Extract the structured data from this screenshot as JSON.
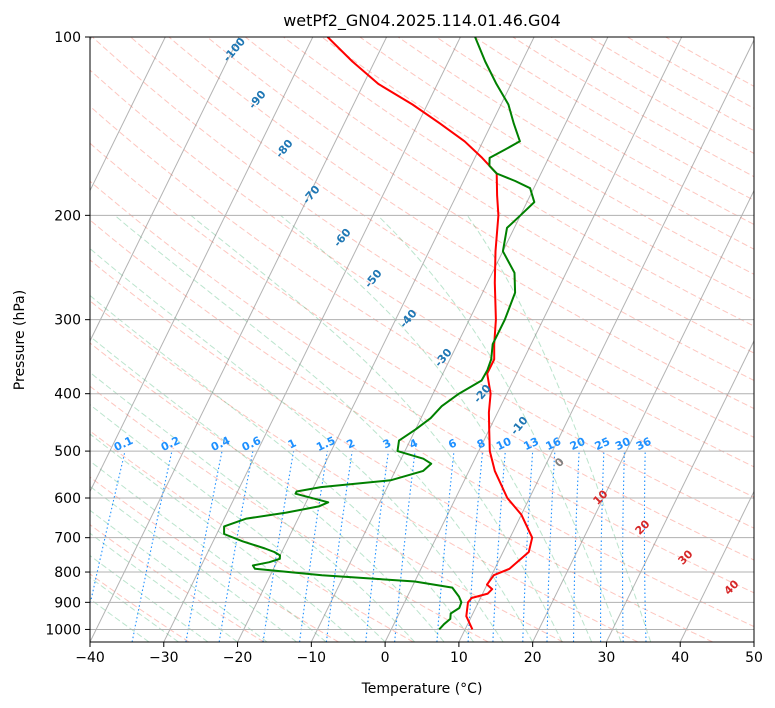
{
  "chart_data": {
    "type": "line",
    "diagram": "skew-T log-p",
    "title": "wetPf2_GN04.2025.114.01.46.G04",
    "xlabel": "Temperature (°C)",
    "ylabel": "Pressure (hPa)",
    "xlim": [
      -40,
      50
    ],
    "ylim_hpa": [
      1050,
      100
    ],
    "y_scale": "log",
    "x_ticks": [
      "−40",
      "−30",
      "−20",
      "−10",
      "0",
      "10",
      "20",
      "30",
      "40",
      "50"
    ],
    "y_ticks": [
      "100",
      "200",
      "300",
      "400",
      "500",
      "600",
      "700",
      "800",
      "900",
      "1000"
    ],
    "grid": true,
    "series": [
      {
        "role": "temperature",
        "color": "#ff0000",
        "points": [
          [
            1000,
            11
          ],
          [
            950,
            9.3
          ],
          [
            900,
            8.6
          ],
          [
            885,
            8.8
          ],
          [
            870,
            10.7
          ],
          [
            855,
            11
          ],
          [
            840,
            10
          ],
          [
            810,
            10.3
          ],
          [
            790,
            12
          ],
          [
            740,
            13.5
          ],
          [
            700,
            13
          ],
          [
            640,
            10
          ],
          [
            600,
            7
          ],
          [
            540,
            3.5
          ],
          [
            500,
            1.5
          ],
          [
            460,
            0
          ],
          [
            430,
            -1.2
          ],
          [
            400,
            -2.2
          ],
          [
            370,
            -4
          ],
          [
            350,
            -4
          ],
          [
            330,
            -5
          ],
          [
            300,
            -6.4
          ],
          [
            260,
            -9
          ],
          [
            230,
            -11
          ],
          [
            200,
            -13
          ],
          [
            185,
            -14.5
          ],
          [
            170,
            -16
          ],
          [
            160,
            -19
          ],
          [
            150,
            -22.5
          ],
          [
            140,
            -27
          ],
          [
            130,
            -32
          ],
          [
            120,
            -38
          ],
          [
            110,
            -43
          ],
          [
            100,
            -48
          ]
        ]
      },
      {
        "role": "dewpoint",
        "color": "#008000",
        "points": [
          [
            1000,
            6.5
          ],
          [
            980,
            6.8
          ],
          [
            960,
            7.3
          ],
          [
            940,
            7
          ],
          [
            920,
            7.8
          ],
          [
            900,
            7.7
          ],
          [
            880,
            7
          ],
          [
            850,
            5.5
          ],
          [
            830,
            0
          ],
          [
            810,
            -13
          ],
          [
            790,
            -22.5
          ],
          [
            780,
            -23
          ],
          [
            770,
            -21
          ],
          [
            760,
            -19.8
          ],
          [
            750,
            -20
          ],
          [
            740,
            -21
          ],
          [
            730,
            -22.5
          ],
          [
            710,
            -26
          ],
          [
            690,
            -29
          ],
          [
            670,
            -29.5
          ],
          [
            650,
            -27
          ],
          [
            635,
            -22
          ],
          [
            620,
            -18
          ],
          [
            610,
            -17
          ],
          [
            590,
            -22
          ],
          [
            585,
            -22
          ],
          [
            575,
            -19
          ],
          [
            560,
            -10
          ],
          [
            540,
            -6.2
          ],
          [
            525,
            -5.6
          ],
          [
            515,
            -7
          ],
          [
            500,
            -11
          ],
          [
            480,
            -11.5
          ],
          [
            460,
            -10
          ],
          [
            440,
            -8.7
          ],
          [
            420,
            -8
          ],
          [
            400,
            -6.5
          ],
          [
            380,
            -4.3
          ],
          [
            365,
            -4.2
          ],
          [
            350,
            -4.4
          ],
          [
            330,
            -5.2
          ],
          [
            300,
            -5.2
          ],
          [
            270,
            -5.6
          ],
          [
            250,
            -7
          ],
          [
            230,
            -10
          ],
          [
            210,
            -11
          ],
          [
            200,
            -10
          ],
          [
            190,
            -9
          ],
          [
            180,
            -10.5
          ],
          [
            175,
            -13
          ],
          [
            170,
            -16
          ],
          [
            165,
            -17.5
          ],
          [
            160,
            -18
          ],
          [
            155,
            -16.5
          ],
          [
            150,
            -15
          ],
          [
            140,
            -17
          ],
          [
            130,
            -19
          ],
          [
            120,
            -22
          ],
          [
            110,
            -25
          ],
          [
            100,
            -28
          ]
        ]
      }
    ],
    "dry_adiabat_labels": [
      "-100",
      "-90",
      "-80",
      "-70",
      "-60",
      "-50",
      "-40",
      "-30",
      "-20",
      "-10"
    ],
    "mixing_ratio_labels": [
      "0.1",
      "0.2",
      "0.4",
      "0.6",
      "1",
      "1.5",
      "2",
      "3",
      "4",
      "6",
      "8",
      "10",
      "13",
      "16",
      "20",
      "25",
      "30",
      "36"
    ],
    "moist_adiabat_labels": [
      "0",
      "10",
      "20",
      "30",
      "40"
    ],
    "colors": {
      "dry_adiabat": "#fa8072",
      "moist_adiabat": "#3cb371",
      "mixing_ratio": "#1e90ff",
      "isotherm": "#808080",
      "dry_label": "#1f77b4",
      "moist_label": "#d62728"
    }
  }
}
